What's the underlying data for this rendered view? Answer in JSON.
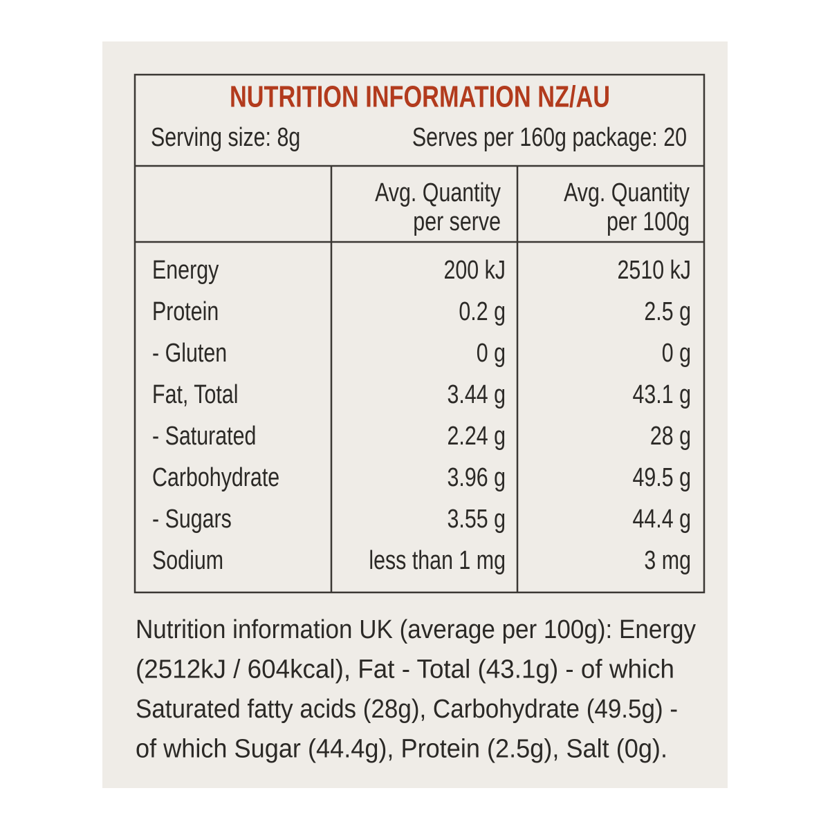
{
  "header": {
    "title": "NUTRITION INFORMATION NZ/AU",
    "serving_size": "Serving size: 8g",
    "serves_per_package": "Serves per 160g package: 20"
  },
  "table": {
    "columns": [
      [
        "Avg. Quantity",
        "per serve"
      ],
      [
        "Avg. Quantity",
        "per 100g"
      ]
    ],
    "rows": [
      [
        "Energy",
        "200 kJ",
        "2510 kJ"
      ],
      [
        "Protein",
        "0.2 g",
        "2.5 g"
      ],
      [
        "- Gluten",
        "0 g",
        "0 g"
      ],
      [
        "Fat, Total",
        "3.44 g",
        "43.1 g"
      ],
      [
        "- Saturated",
        "2.24 g",
        "28 g"
      ],
      [
        "Carbohydrate",
        "3.96 g",
        "49.5 g"
      ],
      [
        "- Sugars",
        "3.55 g",
        "44.4 g"
      ],
      [
        "Sodium",
        "less than 1 mg",
        "3 mg"
      ]
    ]
  },
  "footer": {
    "lines": [
      "Nutrition information UK (average per 100g): Energy",
      "(2512kJ / 604kcal), Fat - Total (43.1g) - of which",
      "Saturated fatty acids (28g), Carbohydrate (49.5g) -",
      "of which Sugar (44.4g), Protein (2.5g), Salt (0g)."
    ]
  }
}
